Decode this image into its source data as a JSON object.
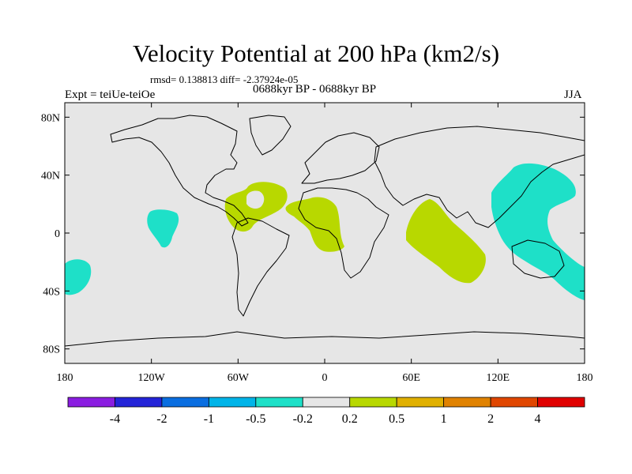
{
  "header": {
    "title": "Velocity Potential at 200 hPa (km2/s)",
    "stats": "rmsd= 0.138813 diff= -2.37924e-05",
    "expt": "Expt = teiUe-teiOe",
    "period": "0688kyr BP - 0688kyr BP",
    "season": "JJA"
  },
  "map": {
    "lon_ticks": [
      "180",
      "120W",
      "60W",
      "0",
      "60E",
      "120E",
      "180"
    ],
    "lat_ticks": [
      "80N",
      "40N",
      "0",
      "40S",
      "80S"
    ],
    "background_color": "#e6e6e6",
    "land_outline_color": "#000000",
    "anomaly_regions": [
      {
        "name": "north-pacific-negative",
        "sign": "negative",
        "color": "#1ee0c8"
      },
      {
        "name": "south-pacific-negative",
        "sign": "negative",
        "color": "#1ee0c8"
      },
      {
        "name": "west-pacific-negative",
        "sign": "negative",
        "color": "#1ee0c8"
      },
      {
        "name": "caribbean-positive",
        "sign": "positive",
        "color": "#b8d800"
      },
      {
        "name": "africa-positive",
        "sign": "positive",
        "color": "#b8d800"
      },
      {
        "name": "indian-ocean-positive",
        "sign": "positive",
        "color": "#b8d800"
      }
    ]
  },
  "colorbar": {
    "colors": [
      "#8a1de0",
      "#2424d8",
      "#0a6ee0",
      "#00b4e8",
      "#1ee0c8",
      "#e6e6e6",
      "#b8d800",
      "#e0b000",
      "#e08200",
      "#e04600",
      "#e00000"
    ],
    "labels": [
      "-4",
      "-2",
      "-1",
      "-0.5",
      "-0.2",
      "0.2",
      "0.5",
      "1",
      "2",
      "4"
    ]
  }
}
